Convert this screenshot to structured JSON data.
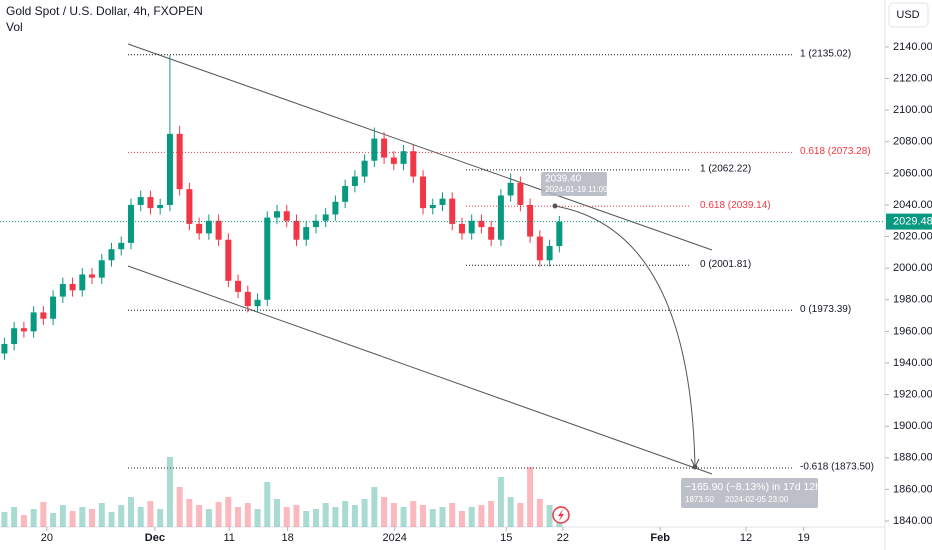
{
  "header": {
    "title": "Gold Spot / U.S. Dollar, 4h, FXOPEN",
    "volume_label": "Vol",
    "currency": "USD"
  },
  "chart_data": {
    "type": "candlestick",
    "x": [
      0.5,
      1.6,
      2.7,
      3.8,
      4.9,
      6,
      7.1,
      8.2,
      9.3,
      10.4,
      11.5,
      12.6,
      13.7,
      14.8,
      15.9,
      17,
      18.1,
      19.2,
      20.3,
      21.4,
      22.5,
      23.6,
      24.7,
      25.8,
      26.9,
      28,
      29.1,
      30.2,
      31.3,
      32.4,
      33.5,
      34.6,
      35.7,
      36.8,
      37.9,
      39,
      40.1,
      41.2,
      42.3,
      43.4,
      44.5,
      45.6,
      46.7,
      47.8,
      48.9,
      50,
      51.1,
      52.2,
      53.3,
      54.4,
      55.5,
      56.6,
      57.7,
      58.8,
      59.9,
      61,
      62.1,
      63.2
    ],
    "open": [
      1946,
      1952,
      1962,
      1960,
      1972,
      1968,
      1982,
      1990,
      1986,
      1996,
      1994,
      2005,
      2012,
      2016,
      2040,
      2045,
      2038,
      2040,
      2085,
      2050,
      2028,
      2022,
      2030,
      2018,
      1992,
      1985,
      1976,
      1980,
      2032,
      2036,
      2030,
      2018,
      2026,
      2030,
      2034,
      2042,
      2052,
      2058,
      2068,
      2082,
      2070,
      2066,
      2074,
      2058,
      2038,
      2040,
      2044,
      2028,
      2022,
      2030,
      2026,
      2018,
      2046,
      2054,
      2040,
      2020,
      2005,
      2014
    ],
    "high": [
      1956,
      1966,
      1966,
      1976,
      1976,
      1986,
      1994,
      1994,
      2000,
      2000,
      2009,
      2016,
      2020,
      2044,
      2049,
      2049,
      2044,
      2135,
      2090,
      2054,
      2032,
      2034,
      2034,
      2022,
      1996,
      1989,
      1984,
      2036,
      2040,
      2040,
      2034,
      2030,
      2034,
      2038,
      2046,
      2056,
      2062,
      2072,
      2089,
      2086,
      2074,
      2078,
      2078,
      2062,
      2044,
      2048,
      2048,
      2032,
      2034,
      2034,
      2030,
      2050,
      2060,
      2058,
      2044,
      2024,
      2018,
      2033
    ],
    "low": [
      1942,
      1948,
      1956,
      1956,
      1964,
      1964,
      1978,
      1982,
      1982,
      1990,
      1990,
      2001,
      2008,
      2012,
      2036,
      2034,
      2034,
      2036,
      2046,
      2024,
      2018,
      2018,
      2014,
      1988,
      1981,
      1972,
      1972,
      1976,
      2028,
      2026,
      2014,
      2014,
      2022,
      2026,
      2030,
      2038,
      2048,
      2054,
      2064,
      2066,
      2062,
      2062,
      2054,
      2034,
      2034,
      2036,
      2024,
      2018,
      2018,
      2022,
      2014,
      2014,
      2042,
      2036,
      2016,
      2001,
      2001,
      2010
    ],
    "close": [
      1952,
      1962,
      1960,
      1972,
      1968,
      1982,
      1990,
      1986,
      1996,
      1994,
      2005,
      2012,
      2016,
      2040,
      2045,
      2038,
      2040,
      2085,
      2050,
      2028,
      2022,
      2030,
      2018,
      1992,
      1985,
      1976,
      1980,
      2032,
      2036,
      2030,
      2018,
      2026,
      2030,
      2034,
      2042,
      2052,
      2058,
      2068,
      2082,
      2070,
      2066,
      2074,
      2058,
      2038,
      2040,
      2044,
      2028,
      2022,
      2030,
      2026,
      2018,
      2046,
      2054,
      2040,
      2020,
      2005,
      2014,
      2029.48
    ],
    "volume": [
      15,
      20,
      12,
      18,
      25,
      14,
      22,
      16,
      20,
      18,
      24,
      15,
      22,
      30,
      20,
      26,
      18,
      70,
      40,
      28,
      22,
      18,
      25,
      30,
      20,
      24,
      18,
      45,
      28,
      20,
      22,
      16,
      18,
      24,
      20,
      26,
      22,
      28,
      40,
      30,
      24,
      20,
      26,
      22,
      18,
      20,
      24,
      16,
      20,
      22,
      26,
      50,
      30,
      24,
      60,
      28,
      22,
      14
    ],
    "vlim": [
      0,
      130
    ],
    "up_color": "#089981",
    "down_color": "#f23645",
    "xlim": [
      0,
      100
    ],
    "xticks": [
      {
        "value": 5.3,
        "label": "20"
      },
      {
        "value": 17.5,
        "label": "Dec"
      },
      {
        "value": 25.9,
        "label": "11"
      },
      {
        "value": 32.5,
        "label": "18"
      },
      {
        "value": 44.6,
        "label": "2024"
      },
      {
        "value": 57.2,
        "label": "15"
      },
      {
        "value": 63.6,
        "label": "22"
      },
      {
        "value": 74.6,
        "label": "Feb"
      },
      {
        "value": 84.3,
        "label": "12"
      },
      {
        "value": 90.8,
        "label": "19"
      }
    ],
    "ylim": [
      1836.2,
      2169.7
    ],
    "yticks": [
      {
        "value": 1840,
        "label": "1840.00"
      },
      {
        "value": 1860,
        "label": "1860.00"
      },
      {
        "value": 1880,
        "label": "1880.00"
      },
      {
        "value": 1900,
        "label": "1900.00"
      },
      {
        "value": 1920,
        "label": "1920.00"
      },
      {
        "value": 1940,
        "label": "1940.00"
      },
      {
        "value": 1960,
        "label": "1960.00"
      },
      {
        "value": 1980,
        "label": "1980.00"
      },
      {
        "value": 2000,
        "label": "2000.00"
      },
      {
        "value": 2020,
        "label": "2020.00"
      },
      {
        "value": 2040,
        "label": "2040.00"
      },
      {
        "value": 2060,
        "label": "2060.00"
      },
      {
        "value": 2080,
        "label": "2080.00"
      },
      {
        "value": 2100,
        "label": "2100.00"
      },
      {
        "value": 2120,
        "label": "2120.00"
      },
      {
        "value": 2140,
        "label": "2140.00"
      }
    ],
    "last_price": 2029.48,
    "fib_levels": [
      {
        "value": 2135.02,
        "label": "1 (2135.02)",
        "color": "#131722"
      },
      {
        "value": 2073.28,
        "label": "0.618 (2073.28)",
        "color": "#f23645"
      },
      {
        "value": 1973.39,
        "label": "0 (1973.39)",
        "color": "#131722"
      },
      {
        "value": 1873.5,
        "label": "-0.618 (1873.50)",
        "color": "#131722"
      },
      {
        "value": 2062.22,
        "label": "1 (2062.22)",
        "color": "#131722"
      },
      {
        "value": 2039.14,
        "label": "0.618 (2039.14)",
        "color": "#f23645"
      },
      {
        "value": 2001.81,
        "label": "0 (2001.81)",
        "color": "#131722"
      }
    ],
    "callout": {
      "price": "2039.40",
      "date": "2024-01-19 11:00"
    },
    "projection": {
      "change": "−165.90 (−8.13%) in 17d 12h",
      "price": "1873.50",
      "date": "2024-02-05 23:00"
    }
  }
}
